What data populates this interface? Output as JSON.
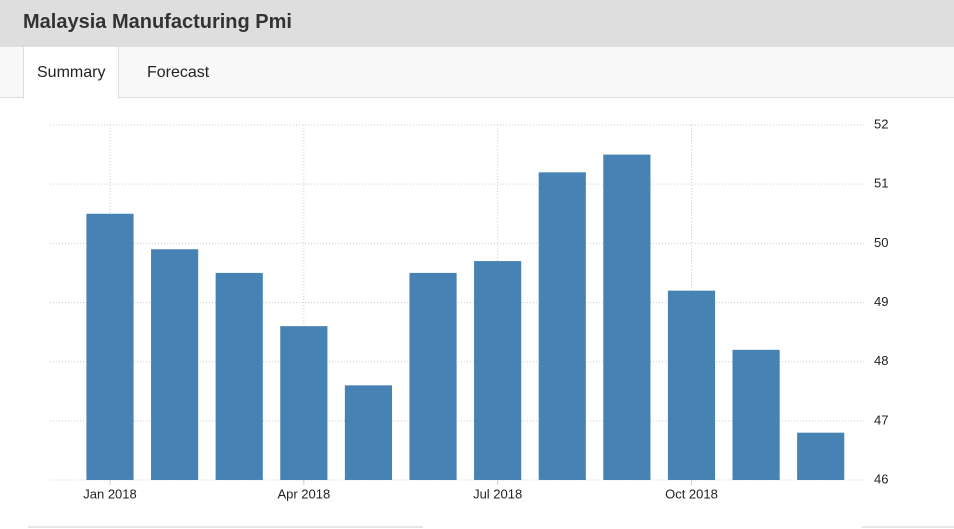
{
  "header": {
    "title": "Malaysia Manufacturing Pmi"
  },
  "tabs": [
    "Summary",
    "Forecast"
  ],
  "chart_data": {
    "type": "bar",
    "categories": [
      "Jan 2018",
      null,
      null,
      "Apr 2018",
      null,
      null,
      "Jul 2018",
      null,
      null,
      "Oct 2018",
      null,
      null
    ],
    "values": [
      50.5,
      49.9,
      49.5,
      48.6,
      47.6,
      49.5,
      49.7,
      51.2,
      51.5,
      49.2,
      48.2,
      46.8
    ],
    "color": "#4682b4",
    "ylim": [
      46,
      52
    ],
    "yticks": [
      46,
      47,
      48,
      49,
      50,
      51,
      52
    ],
    "grid": true
  }
}
